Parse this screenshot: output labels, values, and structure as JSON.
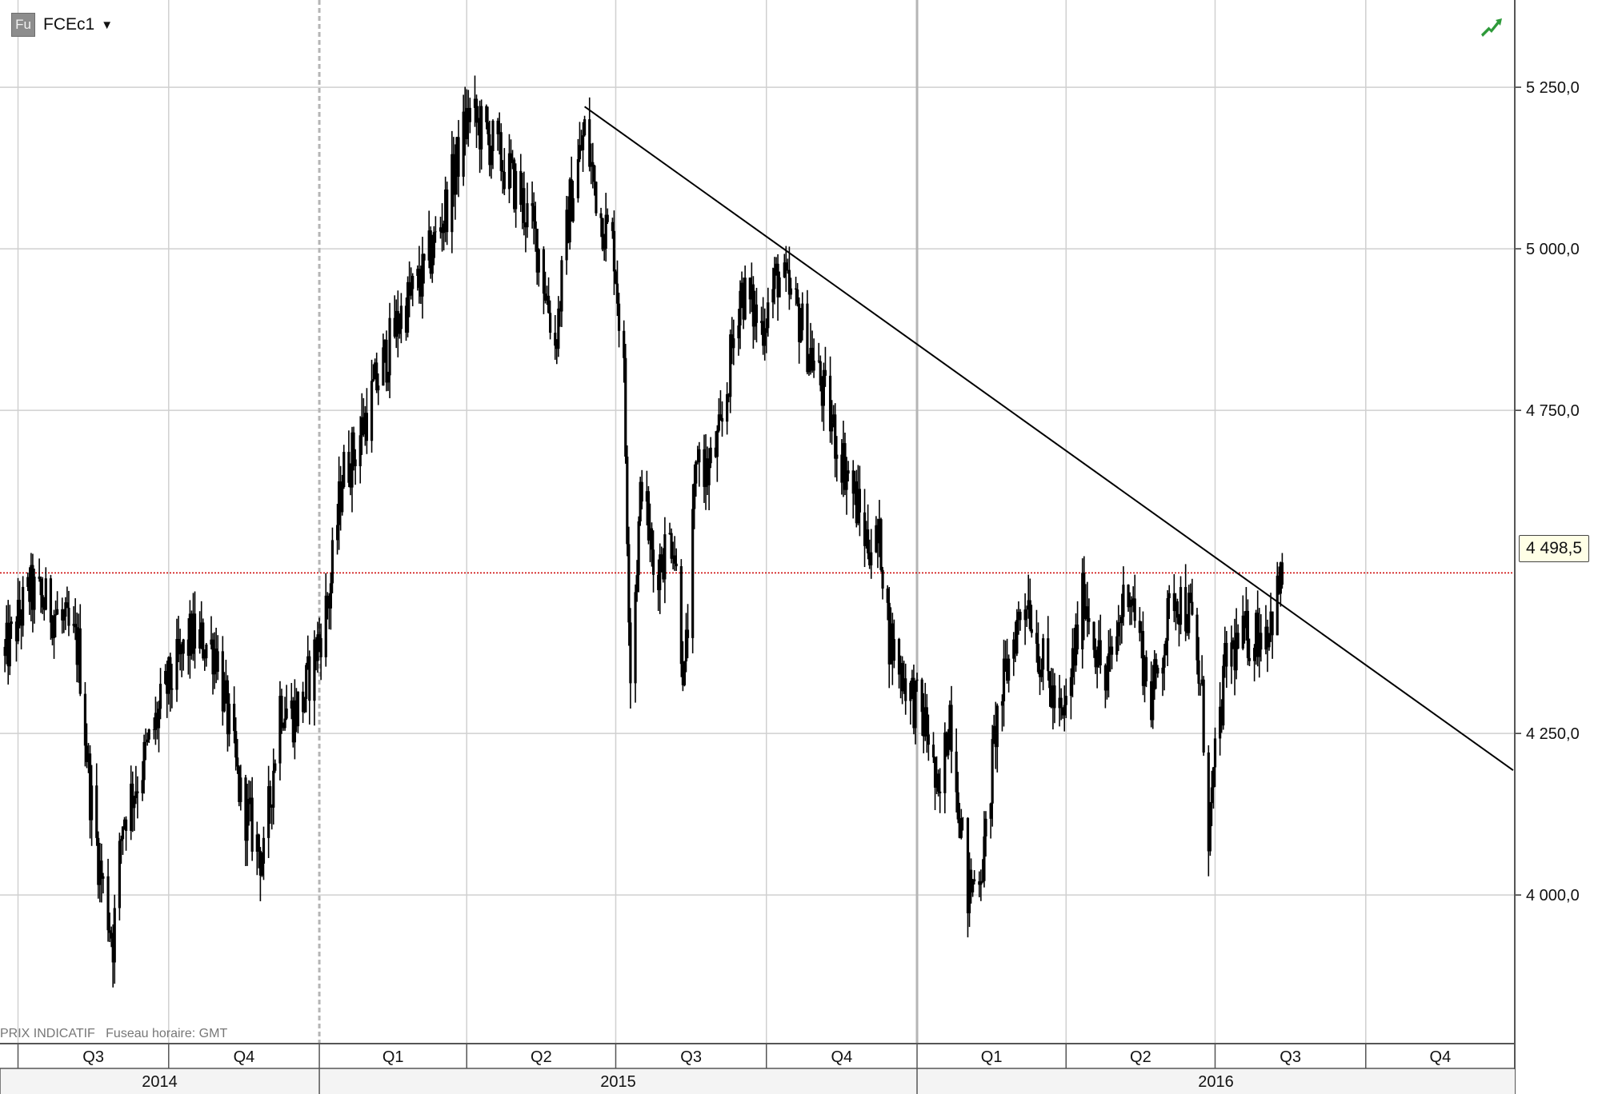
{
  "header": {
    "instrument_icon_text": "Fu",
    "ric": "FCEc1",
    "dropdown": "▼",
    "trend_icon": "trend-up-icon"
  },
  "footer": {
    "note": "PRIX INDICATIF   Fuseau horaire: GMT"
  },
  "colors": {
    "candle": "#000000",
    "last_price_line": "#cc0000",
    "grid": "#d0d0d0",
    "trend_icon": "#2e9a3a"
  },
  "chart_data": {
    "type": "line",
    "title": "",
    "xlabel": "",
    "ylabel": "",
    "ylim": [
      3770,
      5385
    ],
    "yticks": [
      4000,
      4250,
      4750,
      5000,
      5250
    ],
    "ytick_labels": [
      "4 000,0",
      "4 250,0",
      "4 750,0",
      "5 000,0",
      "5 250,0"
    ],
    "last_price": 4498.5,
    "last_price_label": "4 498,5",
    "quarters": [
      {
        "label": "Q3",
        "start": "2014-07-01",
        "end": "2014-10-01"
      },
      {
        "label": "Q4",
        "start": "2014-10-01",
        "end": "2015-01-01"
      },
      {
        "label": "Q1",
        "start": "2015-01-01",
        "end": "2015-04-01"
      },
      {
        "label": "Q2",
        "start": "2015-04-01",
        "end": "2015-07-01"
      },
      {
        "label": "Q3",
        "start": "2015-07-01",
        "end": "2015-10-01"
      },
      {
        "label": "Q4",
        "start": "2015-10-01",
        "end": "2016-01-01"
      },
      {
        "label": "Q1",
        "start": "2016-01-01",
        "end": "2016-04-01"
      },
      {
        "label": "Q2",
        "start": "2016-04-01",
        "end": "2016-07-01"
      },
      {
        "label": "Q3",
        "start": "2016-07-01",
        "end": "2016-10-01"
      },
      {
        "label": "Q4",
        "start": "2016-10-01",
        "end": "2017-01-01"
      }
    ],
    "years": [
      {
        "label": "2014",
        "start": "2014-06-20",
        "end": "2015-01-01"
      },
      {
        "label": "2015",
        "start": "2015-01-01",
        "end": "2016-01-01"
      },
      {
        "label": "2016",
        "start": "2016-01-01",
        "end": "2016-12-31"
      }
    ],
    "trendline": {
      "x": [
        "2015-06-12",
        "2016-12-30"
      ],
      "y": [
        5220,
        4193
      ]
    },
    "series": [
      {
        "x": [
          "2014-06-23",
          "2014-07-08",
          "2014-07-23",
          "2014-08-07",
          "2014-08-14",
          "2014-08-20",
          "2014-08-28",
          "2014-09-03",
          "2014-09-15",
          "2014-09-30",
          "2014-10-15",
          "2014-10-30",
          "2014-11-14",
          "2014-11-28",
          "2014-12-08",
          "2014-12-16",
          "2014-12-22",
          "2015-01-07",
          "2015-01-15",
          "2015-01-23",
          "2015-02-06",
          "2015-02-20",
          "2015-03-06",
          "2015-03-20",
          "2015-04-02",
          "2015-04-17",
          "2015-05-04",
          "2015-05-15",
          "2015-05-25",
          "2015-06-03",
          "2015-06-12",
          "2015-06-22",
          "2015-06-30",
          "2015-07-06",
          "2015-07-10",
          "2015-07-17",
          "2015-07-24",
          "2015-08-05",
          "2015-08-12",
          "2015-08-20",
          "2015-08-26",
          "2015-09-03",
          "2015-09-15",
          "2015-09-28",
          "2015-10-08",
          "2015-10-20",
          "2015-11-02",
          "2015-11-13",
          "2015-11-20",
          "2015-12-01",
          "2015-12-10",
          "2015-12-15",
          "2015-12-22",
          "2016-01-08",
          "2016-01-14",
          "2016-01-21",
          "2016-02-01",
          "2016-02-11",
          "2016-02-18",
          "2016-02-29",
          "2016-03-08",
          "2016-03-17",
          "2016-03-30",
          "2016-04-12",
          "2016-04-25",
          "2016-05-09",
          "2016-05-23",
          "2016-06-06",
          "2016-06-16",
          "2016-06-23",
          "2016-06-27",
          "2016-07-08",
          "2016-07-21",
          "2016-08-03",
          "2016-08-12"
        ],
        "y": [
          4370,
          4470,
          4440,
          4380,
          4160,
          4040,
          3930,
          4120,
          4200,
          4320,
          4400,
          4380,
          4150,
          4050,
          4300,
          4280,
          4300,
          4460,
          4650,
          4690,
          4800,
          4900,
          4960,
          5070,
          5210,
          5160,
          5080,
          5000,
          4850,
          5070,
          5180,
          5050,
          5000,
          4800,
          4350,
          4650,
          4500,
          4560,
          4330,
          4690,
          4650,
          4710,
          4940,
          4880,
          4960,
          4900,
          4800,
          4700,
          4650,
          4550,
          4540,
          4400,
          4350,
          4250,
          4130,
          4290,
          4000,
          4060,
          4260,
          4400,
          4470,
          4360,
          4260,
          4470,
          4320,
          4490,
          4300,
          4470,
          4430,
          4300,
          4100,
          4370,
          4400,
          4420,
          4498.5
        ]
      }
    ]
  }
}
